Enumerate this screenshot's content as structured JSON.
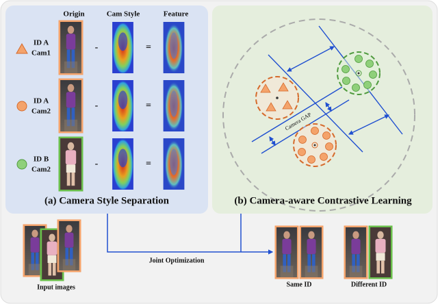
{
  "panel_a": {
    "title": "(a) Camera Style Separation",
    "columns": [
      "Origin",
      "Cam Style",
      "Feature"
    ],
    "rows": [
      {
        "id": "ID A",
        "cam": "Cam1"
      },
      {
        "id": "ID A",
        "cam": "Cam2"
      },
      {
        "id": "ID B",
        "cam": "Cam2"
      }
    ],
    "operators": [
      "-",
      "="
    ]
  },
  "panel_b": {
    "title": "(b) Camera-aware Contrastive Learning",
    "gap_label": "Camera GAP"
  },
  "bottom": {
    "input_label": "Input images",
    "link_label": "Joint Optimization",
    "same_label": "Same ID",
    "different_label": "Different ID"
  }
}
